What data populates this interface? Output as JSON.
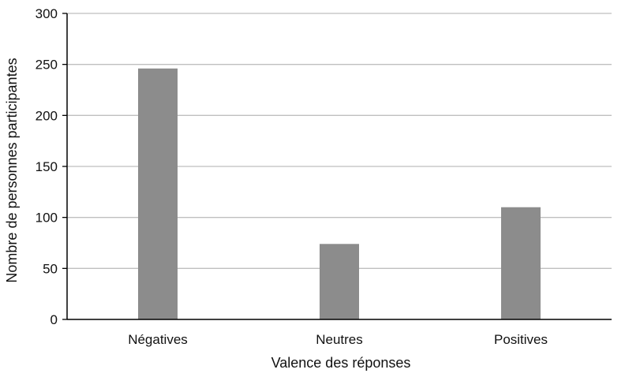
{
  "chart_data": {
    "type": "bar",
    "title": "",
    "xlabel": "Valence des réponses",
    "ylabel": "Nombre de personnes participantes",
    "categories": [
      "Négatives",
      "Neutres",
      "Positives"
    ],
    "values": [
      246,
      74,
      110
    ],
    "ylim": [
      0,
      300
    ],
    "yticks": [
      0,
      50,
      100,
      150,
      200,
      250,
      300
    ],
    "grid": true,
    "legend": "none",
    "colors": {
      "bar": "#8c8c8c",
      "grid": "#bfbfbf",
      "axis": "#000000"
    }
  }
}
